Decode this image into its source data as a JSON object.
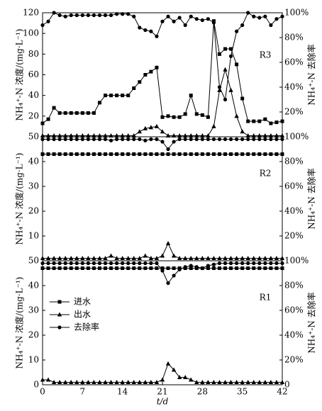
{
  "chart_data": [
    {
      "type": "line",
      "label": "R3",
      "ylabel": "NH₄⁺-N 浓度/(mg·L⁻¹)",
      "y2label": "NH₄⁺-N 去除率",
      "xlim": [
        0,
        42
      ],
      "ylim": [
        0,
        120
      ],
      "yticks": [
        20,
        40,
        60,
        80,
        100,
        120
      ],
      "y2lim": [
        0,
        100
      ],
      "y2ticks": [
        {
          "value": 20,
          "label": "20%"
        },
        {
          "value": 40,
          "label": "40%"
        },
        {
          "value": 60,
          "label": "60%"
        },
        {
          "value": 80,
          "label": "80%"
        },
        {
          "value": 100,
          "label": "100%"
        }
      ],
      "x": [
        0,
        1,
        2,
        3,
        4,
        5,
        6,
        7,
        8,
        9,
        10,
        11,
        12,
        13,
        14,
        15,
        16,
        17,
        18,
        19,
        20,
        21,
        22,
        23,
        24,
        25,
        26,
        27,
        28,
        29,
        30,
        31,
        32,
        33,
        34,
        35,
        36,
        37,
        38,
        39,
        40,
        41,
        42
      ],
      "series": [
        {
          "marker": "square",
          "color": "#000000",
          "values": [
            13,
            17,
            28,
            23,
            23,
            23,
            23,
            23,
            23,
            23,
            33,
            40,
            40,
            40,
            40,
            40,
            47,
            53,
            60,
            63,
            67,
            19,
            20,
            19,
            19,
            22,
            40,
            22,
            21,
            19,
            112,
            80,
            85,
            85,
            70,
            37,
            15,
            15,
            15,
            17,
            13,
            14,
            15
          ]
        },
        {
          "marker": "triangle",
          "color": "#000000",
          "values": [
            1,
            1,
            1,
            1,
            1,
            1,
            1,
            1,
            1,
            1,
            1,
            1,
            1,
            1,
            1,
            1,
            1,
            5,
            8,
            9,
            10,
            5,
            1,
            1,
            1,
            1,
            1,
            1,
            1,
            1,
            10,
            45,
            65,
            45,
            20,
            5,
            1,
            1,
            1,
            1,
            1,
            1,
            1
          ]
        },
        {
          "marker": "circle",
          "color": "#000000",
          "axis": "y2",
          "values": [
            90,
            93,
            100,
            98,
            97,
            98,
            98,
            98,
            98,
            98,
            98,
            98,
            98,
            99,
            99,
            99,
            97,
            88,
            86,
            85,
            81,
            93,
            97,
            93,
            96,
            90,
            97,
            95,
            94,
            95,
            92,
            40,
            30,
            65,
            85,
            90,
            100,
            97,
            96,
            97,
            90,
            95,
            97
          ]
        }
      ]
    },
    {
      "type": "line",
      "label": "R2",
      "ylabel": "NH₄⁺-N 浓度/(mg·L⁻¹)",
      "y2label": "NH₄⁺-N 去除率",
      "xlim": [
        0,
        42
      ],
      "ylim": [
        0,
        50
      ],
      "yticks": [
        10,
        20,
        30,
        40,
        50
      ],
      "y2lim": [
        0,
        100
      ],
      "y2ticks": [
        {
          "value": 20,
          "label": "20%"
        },
        {
          "value": 40,
          "label": "40%"
        },
        {
          "value": 60,
          "label": "60%"
        },
        {
          "value": 80,
          "label": "80%"
        },
        {
          "value": 100,
          "label": "100%"
        }
      ],
      "x": [
        0,
        1,
        2,
        3,
        4,
        5,
        6,
        7,
        8,
        9,
        10,
        11,
        12,
        13,
        14,
        15,
        16,
        17,
        18,
        19,
        20,
        21,
        22,
        23,
        24,
        25,
        26,
        27,
        28,
        29,
        30,
        31,
        32,
        33,
        34,
        35,
        36,
        37,
        38,
        39,
        40,
        41,
        42
      ],
      "series": [
        {
          "marker": "square",
          "color": "#000000",
          "values": [
            43,
            43,
            43,
            43,
            43,
            43,
            43,
            43,
            43,
            43,
            43,
            43,
            43,
            43,
            43,
            43,
            43,
            43,
            43,
            43,
            43,
            43,
            43,
            43,
            43,
            43,
            43,
            43,
            43,
            43,
            43,
            43,
            43,
            43,
            43,
            43,
            43,
            43,
            43,
            43,
            43,
            43,
            43
          ]
        },
        {
          "marker": "triangle",
          "color": "#000000",
          "values": [
            1,
            1,
            1,
            1,
            1,
            1,
            1,
            1,
            1,
            1,
            1,
            1,
            2,
            1,
            1,
            1,
            1,
            1,
            2,
            1,
            1,
            2,
            7,
            2,
            1,
            1,
            1,
            1,
            1,
            1,
            1,
            1,
            1,
            1,
            1,
            1,
            1,
            1,
            1,
            1,
            1,
            1,
            1
          ]
        },
        {
          "marker": "circle",
          "color": "#000000",
          "axis": "y2",
          "values": [
            98,
            98,
            98,
            98,
            98,
            98,
            98,
            98,
            98,
            98,
            98,
            98,
            97,
            98,
            98,
            98,
            98,
            98,
            97,
            98,
            98,
            96,
            90,
            96,
            98,
            98,
            98,
            98,
            98,
            98,
            98,
            98,
            98,
            98,
            98,
            98,
            98,
            98,
            98,
            98,
            98,
            98,
            98
          ]
        }
      ]
    },
    {
      "type": "line",
      "label": "R1",
      "ylabel": "NH₄⁺-N 浓度/(mg·L⁻¹)",
      "y2label": "NH₄⁺-N 去除率",
      "xlabel": "t/d",
      "xlim": [
        0,
        42
      ],
      "xticks": [
        0,
        7,
        14,
        21,
        28,
        35,
        42
      ],
      "ylim": [
        0,
        50
      ],
      "yticks": [
        0,
        10,
        20,
        30,
        40,
        50
      ],
      "y2lim": [
        0,
        100
      ],
      "y2ticks": [
        {
          "value": 0,
          "label": "0"
        },
        {
          "value": 20,
          "label": "20%"
        },
        {
          "value": 40,
          "label": "40%"
        },
        {
          "value": 60,
          "label": "60%"
        },
        {
          "value": 80,
          "label": "80%"
        },
        {
          "value": 100,
          "label": "100%"
        }
      ],
      "legend": "upper left",
      "x": [
        0,
        1,
        2,
        3,
        4,
        5,
        6,
        7,
        8,
        9,
        10,
        11,
        12,
        13,
        14,
        15,
        16,
        17,
        18,
        19,
        20,
        21,
        22,
        23,
        24,
        25,
        26,
        27,
        28,
        29,
        30,
        31,
        32,
        33,
        34,
        35,
        36,
        37,
        38,
        39,
        40,
        41,
        42
      ],
      "series": [
        {
          "name": "进水",
          "marker": "square",
          "color": "#000000",
          "values": [
            47,
            47,
            47,
            47,
            47,
            47,
            47,
            47,
            47,
            47,
            47,
            47,
            47,
            47,
            47,
            47,
            47,
            47,
            47,
            47,
            47,
            47,
            47,
            47,
            47,
            47,
            47,
            47,
            47,
            47,
            47,
            47,
            47,
            47,
            47,
            47,
            47,
            47,
            47,
            47,
            47,
            47,
            47
          ]
        },
        {
          "name": "出水",
          "marker": "triangle",
          "color": "#000000",
          "values": [
            2,
            2,
            1,
            1,
            1,
            1,
            1,
            1,
            1,
            1,
            1,
            1,
            1,
            1,
            1,
            1,
            1,
            1,
            1,
            1,
            1,
            2,
            8.5,
            6,
            3,
            3,
            2,
            1,
            1,
            1,
            1,
            1,
            1,
            1,
            1,
            1,
            1,
            1,
            1,
            1,
            1,
            1,
            1
          ]
        },
        {
          "name": "去除率",
          "marker": "circle",
          "color": "#000000",
          "axis": "y2",
          "values": [
            98,
            98,
            98,
            98,
            98,
            98,
            98,
            98,
            98,
            98,
            98,
            98,
            98,
            98,
            98,
            98,
            98,
            98,
            98,
            98,
            98,
            92,
            82,
            88,
            93,
            95,
            96,
            95,
            94,
            96,
            97,
            98,
            98,
            98,
            98,
            98,
            98,
            98,
            98,
            98,
            98,
            98,
            98
          ]
        }
      ]
    }
  ]
}
